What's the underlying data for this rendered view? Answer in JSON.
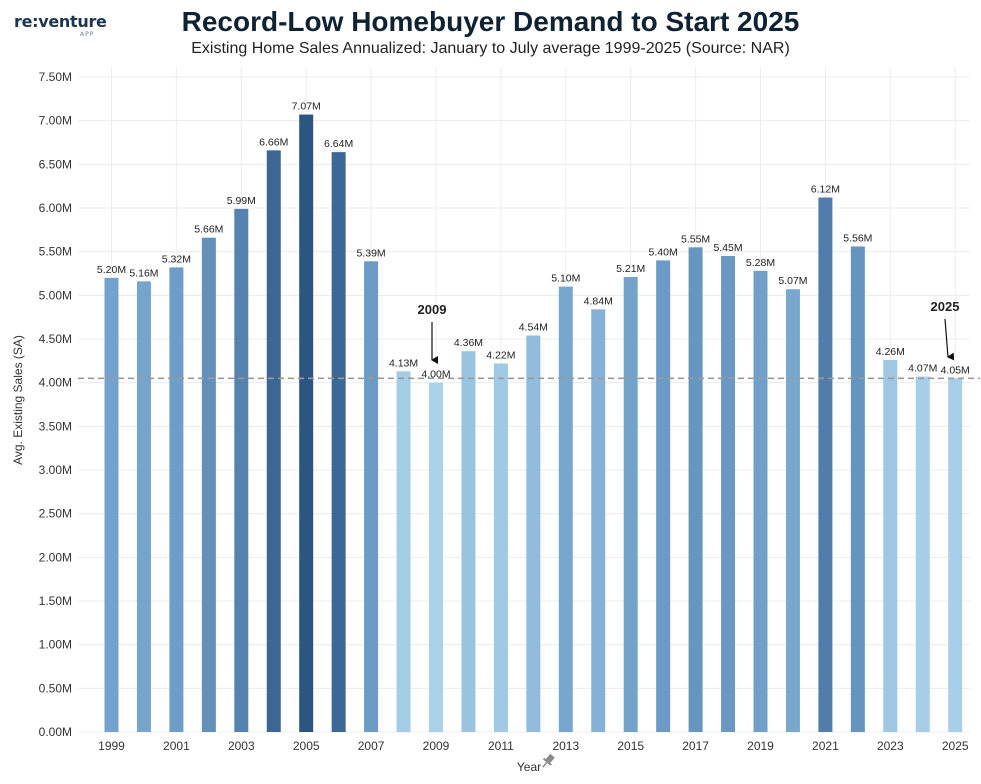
{
  "brand": {
    "name": "re:venture",
    "sub": "APP"
  },
  "colors": {
    "bar_light": "#a9d1ea",
    "bar_mid": "#6f9fc9",
    "bar_dark": "#2d5584",
    "baseline": "#9a9a9a",
    "grid": "#ececec"
  },
  "chart_data": {
    "type": "bar",
    "title": "Record-Low Homebuyer Demand to Start 2025",
    "subtitle": "Existing Home Sales Annualized: January to July average 1999-2025 (Source: NAR)",
    "xlabel": "Year",
    "ylabel": "Avg. Existing Sales (SA)",
    "ylim": [
      0,
      7.5
    ],
    "yticks": [
      0,
      0.5,
      1.0,
      1.5,
      2.0,
      2.5,
      3.0,
      3.5,
      4.0,
      4.5,
      5.0,
      5.5,
      6.0,
      6.5,
      7.0,
      7.5
    ],
    "ytick_labels": [
      "0.00M",
      "0.50M",
      "1.00M",
      "1.50M",
      "2.00M",
      "2.50M",
      "3.00M",
      "3.50M",
      "4.00M",
      "4.50M",
      "5.00M",
      "5.50M",
      "6.00M",
      "6.50M",
      "7.00M",
      "7.50M"
    ],
    "xtick_labels": [
      "1999",
      "2001",
      "2003",
      "2005",
      "2007",
      "2009",
      "2011",
      "2013",
      "2015",
      "2017",
      "2019",
      "2021",
      "2023",
      "2025"
    ],
    "categories": [
      "1999",
      "2000",
      "2001",
      "2002",
      "2003",
      "2004",
      "2005",
      "2006",
      "2007",
      "2008",
      "2009",
      "2010",
      "2011",
      "2012",
      "2013",
      "2014",
      "2015",
      "2016",
      "2017",
      "2018",
      "2019",
      "2020",
      "2021",
      "2022",
      "2023",
      "2024",
      "2025"
    ],
    "values": [
      5.2,
      5.16,
      5.32,
      5.66,
      5.99,
      6.66,
      7.07,
      6.64,
      5.39,
      4.13,
      4.0,
      4.36,
      4.22,
      4.54,
      5.1,
      4.84,
      5.21,
      5.4,
      5.55,
      5.45,
      5.28,
      5.07,
      6.12,
      5.56,
      4.26,
      4.07,
      4.05
    ],
    "value_labels": [
      "5.20M",
      "5.16M",
      "5.32M",
      "5.66M",
      "5.99M",
      "6.66M",
      "7.07M",
      "6.64M",
      "5.39M",
      "4.13M",
      "4.00M",
      "4.36M",
      "4.22M",
      "4.54M",
      "5.10M",
      "4.84M",
      "5.21M",
      "5.40M",
      "5.55M",
      "5.45M",
      "5.28M",
      "5.07M",
      "6.12M",
      "5.56M",
      "4.26M",
      "4.07M",
      "4.05M"
    ],
    "reference_line": 4.05,
    "grid": true,
    "annotations": [
      {
        "text": "2009",
        "category": "2009"
      },
      {
        "text": "2025",
        "category": "2025"
      }
    ]
  }
}
